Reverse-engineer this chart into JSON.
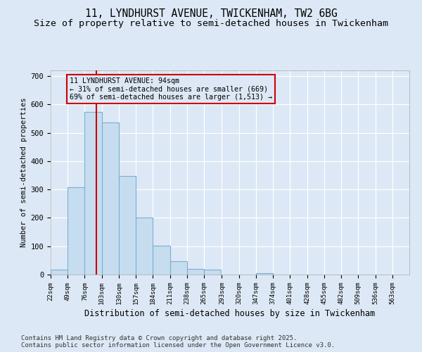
{
  "title1": "11, LYNDHURST AVENUE, TWICKENHAM, TW2 6BG",
  "title2": "Size of property relative to semi-detached houses in Twickenham",
  "xlabel": "Distribution of semi-detached houses by size in Twickenham",
  "ylabel": "Number of semi-detached properties",
  "footnote": "Contains HM Land Registry data © Crown copyright and database right 2025.\nContains public sector information licensed under the Open Government Licence v3.0.",
  "bin_edges": [
    22,
    49,
    76,
    103,
    130,
    157,
    184,
    211,
    238,
    265,
    293,
    320,
    347,
    374,
    401,
    428,
    455,
    482,
    509,
    536,
    563
  ],
  "bar_heights": [
    18,
    309,
    573,
    537,
    348,
    200,
    103,
    47,
    20,
    17,
    0,
    0,
    5,
    0,
    0,
    0,
    0,
    0,
    0,
    0
  ],
  "bar_color": "#c6ddf0",
  "bar_edge_color": "#7aaecf",
  "property_size": 94,
  "property_line_color": "#cc0000",
  "annotation_text": "11 LYNDHURST AVENUE: 94sqm\n← 31% of semi-detached houses are smaller (669)\n69% of semi-detached houses are larger (1,513) →",
  "annotation_box_color": "#cc0000",
  "ylim": [
    0,
    720
  ],
  "background_color": "#dce8f5",
  "grid_color": "#ffffff",
  "title_fontsize": 10.5,
  "subtitle_fontsize": 9.5,
  "tick_labels": [
    "22sqm",
    "49sqm",
    "76sqm",
    "103sqm",
    "130sqm",
    "157sqm",
    "184sqm",
    "211sqm",
    "238sqm",
    "265sqm",
    "293sqm",
    "320sqm",
    "347sqm",
    "374sqm",
    "401sqm",
    "428sqm",
    "455sqm",
    "482sqm",
    "509sqm",
    "536sqm",
    "563sqm"
  ],
  "footnote_fontsize": 6.5,
  "xlabel_fontsize": 8.5,
  "ylabel_fontsize": 7.5
}
